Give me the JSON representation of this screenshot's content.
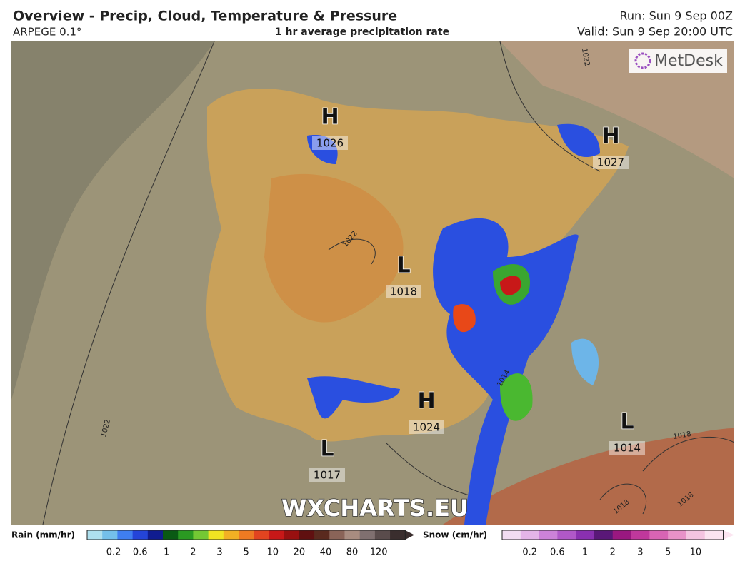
{
  "header": {
    "title": "Overview - Precip, Cloud, Temperature & Pressure",
    "model": "ARPEGE 0.1°",
    "product": "1 hr average precipitation rate",
    "run": "Run: Sun 9 Sep 00Z",
    "valid": "Valid: Sun 9 Sep 20:00 UTC"
  },
  "logo": "MetDesk",
  "watermark": "WXCHARTS.EU",
  "pressure_centers": [
    {
      "type": "H",
      "value": 1026
    },
    {
      "type": "H",
      "value": 1027
    },
    {
      "type": "L",
      "value": 1018
    },
    {
      "type": "H",
      "value": 1024
    },
    {
      "type": "L",
      "value": 1017
    },
    {
      "type": "L",
      "value": 1014
    }
  ],
  "isobar_labels": [
    1022,
    1022,
    1022,
    1018,
    1018,
    1018,
    1014
  ],
  "legend": {
    "rain": {
      "label": "Rain (mm/hr)",
      "ticks": [
        0.2,
        0.6,
        1,
        2,
        3,
        5,
        10,
        20,
        40,
        80,
        120
      ]
    },
    "snow": {
      "label": "Snow (cm/hr)",
      "ticks": [
        0.2,
        0.6,
        1,
        2,
        3,
        5,
        10
      ]
    }
  }
}
